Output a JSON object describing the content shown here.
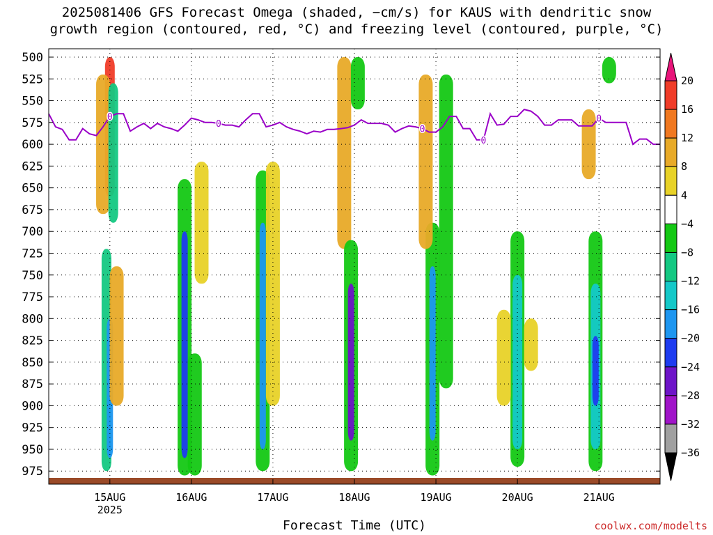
{
  "title_line1": "2025081406 GFS Forecast Omega (shaded, −cm/s) for KAUS with dendritic snow",
  "title_line2": "growth region (contoured, red, °C) and freezing level (contoured, purple, °C)",
  "credit": "coolwx.com/modelts",
  "chart_data": {
    "type": "heatmap",
    "xlabel": "Forecast Time (UTC)",
    "ylabel": "",
    "y_axis_pressure_hpa": [
      500,
      525,
      550,
      575,
      600,
      625,
      650,
      675,
      700,
      725,
      750,
      775,
      800,
      825,
      850,
      875,
      900,
      925,
      950,
      975
    ],
    "y_range": [
      500,
      990
    ],
    "x_range_hours": [
      0,
      180
    ],
    "x_ticks": [
      {
        "hours": 18,
        "label": "15AUG",
        "sublabel": "2025"
      },
      {
        "hours": 42,
        "label": "16AUG",
        "sublabel": ""
      },
      {
        "hours": 66,
        "label": "17AUG",
        "sublabel": ""
      },
      {
        "hours": 90,
        "label": "18AUG",
        "sublabel": ""
      },
      {
        "hours": 114,
        "label": "19AUG",
        "sublabel": ""
      },
      {
        "hours": 138,
        "label": "20AUG",
        "sublabel": ""
      },
      {
        "hours": 162,
        "label": "21AUG",
        "sublabel": ""
      }
    ],
    "grid": true,
    "colorbar": {
      "labels": [
        "20",
        "16",
        "12",
        "8",
        "4",
        "−4",
        "−8",
        "−12",
        "−16",
        "−20",
        "−24",
        "−28",
        "−32",
        "−36"
      ],
      "colors": [
        "#e8147a",
        "#f03c28",
        "#f07820",
        "#e8aa28",
        "#e8d228",
        "#ffffff",
        "#14c814",
        "#14c882",
        "#14c8c8",
        "#1e96f0",
        "#1e3cf0",
        "#6e14c8",
        "#a014c8",
        "#a0a0a0",
        "#000000"
      ]
    },
    "freezing_level": {
      "color": "#9a00c8",
      "label": "0",
      "hours": [
        0,
        2,
        4,
        6,
        8,
        10,
        12,
        14,
        16,
        18,
        20,
        22,
        24,
        26,
        28,
        30,
        32,
        34,
        36,
        38,
        40,
        42,
        44,
        46,
        48,
        50,
        52,
        54,
        56,
        58,
        60,
        62,
        64,
        66,
        68,
        70,
        72,
        74,
        76,
        78,
        80,
        82,
        84,
        86,
        88,
        90,
        92,
        94,
        96,
        98,
        100,
        102,
        104,
        106,
        108,
        110,
        112,
        114,
        116,
        118,
        120,
        122,
        124,
        126,
        128,
        130,
        132,
        134,
        136,
        138,
        140,
        142,
        144,
        146,
        148,
        150,
        152,
        154,
        156,
        158,
        160,
        162,
        164,
        166,
        168,
        170,
        172,
        174,
        176,
        178,
        180
      ],
      "pressure_hpa": [
        565,
        580,
        583,
        595,
        595,
        582,
        588,
        590,
        580,
        568,
        565,
        565,
        585,
        580,
        576,
        582,
        576,
        580,
        582,
        585,
        578,
        570,
        572,
        575,
        575,
        576,
        578,
        578,
        580,
        572,
        565,
        565,
        580,
        578,
        575,
        580,
        583,
        585,
        588,
        585,
        586,
        583,
        583,
        582,
        581,
        578,
        572,
        576,
        576,
        576,
        578,
        586,
        582,
        579,
        580,
        582,
        586,
        586,
        580,
        568,
        568,
        582,
        582,
        595,
        595,
        565,
        578,
        577,
        568,
        568,
        560,
        562,
        568,
        578,
        578,
        572,
        572,
        572,
        579,
        579,
        579,
        570,
        575,
        575,
        575,
        575,
        600,
        594,
        594,
        600,
        600
      ]
    },
    "omega_features": [
      {
        "hours": 18,
        "p_top": 500,
        "p_bot": 660,
        "value": 16
      },
      {
        "hours": 16,
        "p_top": 520,
        "p_bot": 680,
        "value": 8
      },
      {
        "hours": 19,
        "p_top": 530,
        "p_bot": 690,
        "value": -12
      },
      {
        "hours": 17,
        "p_top": 720,
        "p_bot": 975,
        "value": -12
      },
      {
        "hours": 18,
        "p_top": 800,
        "p_bot": 960,
        "value": -20
      },
      {
        "hours": 20,
        "p_top": 740,
        "p_bot": 900,
        "value": 8
      },
      {
        "hours": 40,
        "p_top": 640,
        "p_bot": 980,
        "value": -8
      },
      {
        "hours": 40,
        "p_top": 700,
        "p_bot": 960,
        "value": -24
      },
      {
        "hours": 45,
        "p_top": 620,
        "p_bot": 760,
        "value": 4
      },
      {
        "hours": 43,
        "p_top": 840,
        "p_bot": 980,
        "value": -8
      },
      {
        "hours": 63,
        "p_top": 630,
        "p_bot": 975,
        "value": -8
      },
      {
        "hours": 63,
        "p_top": 690,
        "p_bot": 950,
        "value": -20
      },
      {
        "hours": 66,
        "p_top": 620,
        "p_bot": 900,
        "value": 4
      },
      {
        "hours": 87,
        "p_top": 500,
        "p_bot": 720,
        "value": 8
      },
      {
        "hours": 89,
        "p_top": 710,
        "p_bot": 975,
        "value": -8
      },
      {
        "hours": 89,
        "p_top": 760,
        "p_bot": 940,
        "value": -28
      },
      {
        "hours": 91,
        "p_top": 500,
        "p_bot": 560,
        "value": -8
      },
      {
        "hours": 113,
        "p_top": 690,
        "p_bot": 980,
        "value": -8
      },
      {
        "hours": 113,
        "p_top": 740,
        "p_bot": 940,
        "value": -20
      },
      {
        "hours": 111,
        "p_top": 520,
        "p_bot": 720,
        "value": 8
      },
      {
        "hours": 117,
        "p_top": 520,
        "p_bot": 880,
        "value": -8
      },
      {
        "hours": 138,
        "p_top": 700,
        "p_bot": 970,
        "value": -8
      },
      {
        "hours": 138,
        "p_top": 750,
        "p_bot": 950,
        "value": -16
      },
      {
        "hours": 161,
        "p_top": 700,
        "p_bot": 975,
        "value": -8
      },
      {
        "hours": 161,
        "p_top": 760,
        "p_bot": 950,
        "value": -16
      },
      {
        "hours": 161,
        "p_top": 820,
        "p_bot": 900,
        "value": -24
      },
      {
        "hours": 159,
        "p_top": 560,
        "p_bot": 640,
        "value": 8
      },
      {
        "hours": 165,
        "p_top": 500,
        "p_bot": 530,
        "value": -8
      },
      {
        "hours": 134,
        "p_top": 790,
        "p_bot": 900,
        "value": 4
      },
      {
        "hours": 142,
        "p_top": 800,
        "p_bot": 860,
        "value": 4
      }
    ]
  }
}
